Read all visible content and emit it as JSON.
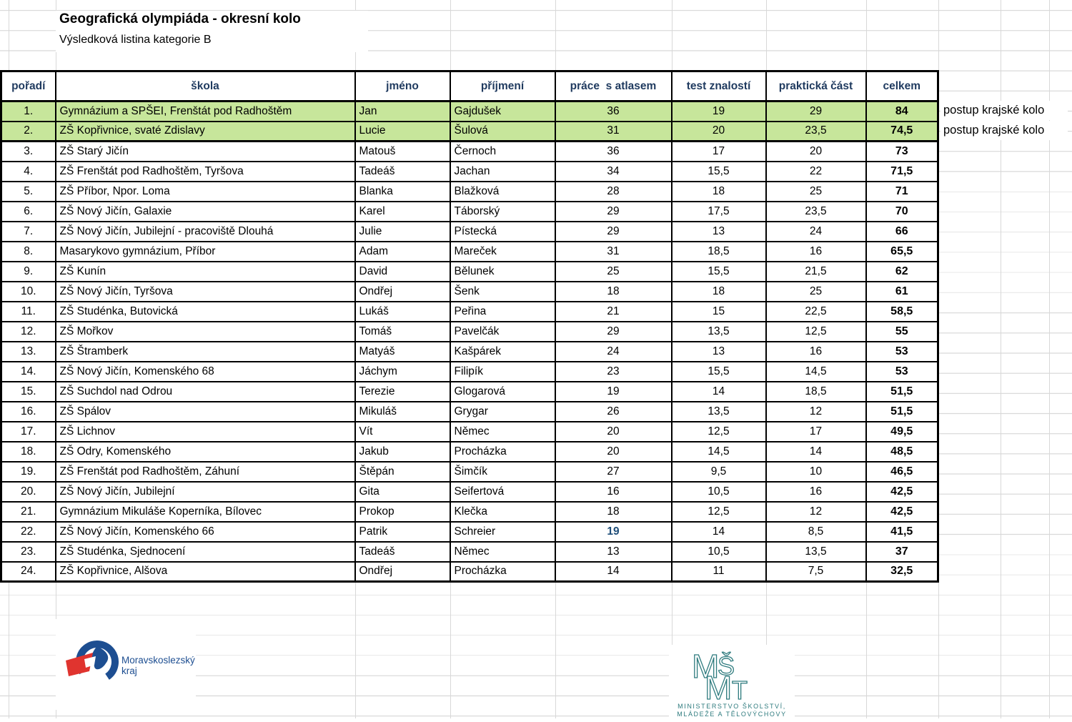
{
  "title": "Geografická olympiáda - okresní kolo",
  "subtitle": "Výsledková listina kategorie B",
  "table": {
    "columns": [
      {
        "key": "rank",
        "label": "pořadí"
      },
      {
        "key": "school",
        "label": "škola"
      },
      {
        "key": "first_name",
        "label": "jméno"
      },
      {
        "key": "last_name",
        "label": "příjmení"
      },
      {
        "key": "atlas",
        "label": "práce  s atlasem"
      },
      {
        "key": "test",
        "label": "test znalostí"
      },
      {
        "key": "practical",
        "label": "praktická část"
      },
      {
        "key": "total",
        "label": "celkem"
      }
    ],
    "rows": [
      {
        "rank": "1.",
        "school": "Gymnázium a SPŠEI, Frenštát pod Radhoštěm",
        "first_name": "Jan",
        "last_name": "Gajdušek",
        "atlas": "36",
        "test": "19",
        "practical": "29",
        "total": "84",
        "highlight": true,
        "note": "postup krajské kolo"
      },
      {
        "rank": "2.",
        "school": "ZŠ Kopřivnice, svaté Zdislavy",
        "first_name": "Lucie",
        "last_name": "Šulová",
        "atlas": "31",
        "test": "20",
        "practical": "23,5",
        "total": "74,5",
        "highlight": true,
        "note": "postup krajské kolo"
      },
      {
        "rank": "3.",
        "school": "ZŠ Starý Jičín",
        "first_name": "Matouš",
        "last_name": "Černoch",
        "atlas": "36",
        "test": "17",
        "practical": "20",
        "total": "73"
      },
      {
        "rank": "4.",
        "school": "ZŠ Frenštát pod Radhoštěm, Tyršova",
        "first_name": "Tadeáš",
        "last_name": "Jachan",
        "atlas": "34",
        "test": "15,5",
        "practical": "22",
        "total": "71,5"
      },
      {
        "rank": "5.",
        "school": "ZŠ Příbor, Npor. Loma",
        "first_name": "Blanka",
        "last_name": "Blažková",
        "atlas": "28",
        "test": "18",
        "practical": "25",
        "total": "71"
      },
      {
        "rank": "6.",
        "school": "ZŠ Nový Jičín, Galaxie",
        "first_name": "Karel",
        "last_name": "Táborský",
        "atlas": "29",
        "test": "17,5",
        "practical": "23,5",
        "total": "70"
      },
      {
        "rank": "7.",
        "school": "ZŠ Nový Jičín, Jubilejní - pracoviště Dlouhá",
        "first_name": "Julie",
        "last_name": "Pístecká",
        "atlas": "29",
        "test": "13",
        "practical": "24",
        "total": "66"
      },
      {
        "rank": "8.",
        "school": "Masarykovo gymnázium, Příbor",
        "first_name": "Adam",
        "last_name": "Mareček",
        "atlas": "31",
        "test": "18,5",
        "practical": "16",
        "total": "65,5"
      },
      {
        "rank": "9.",
        "school": "ZŠ Kunín",
        "first_name": "David",
        "last_name": "Bělunek",
        "atlas": "25",
        "test": "15,5",
        "practical": "21,5",
        "total": "62"
      },
      {
        "rank": "10.",
        "school": "ZŠ Nový Jičín, Tyršova",
        "first_name": "Ondřej",
        "last_name": "Šenk",
        "atlas": "18",
        "test": "18",
        "practical": "25",
        "total": "61"
      },
      {
        "rank": "11.",
        "school": "ZŠ Studénka, Butovická",
        "first_name": "Lukáš",
        "last_name": "Peřina",
        "atlas": "21",
        "test": "15",
        "practical": "22,5",
        "total": "58,5"
      },
      {
        "rank": "12.",
        "school": "ZŠ Mořkov",
        "first_name": "Tomáš",
        "last_name": "Pavelčák",
        "atlas": "29",
        "test": "13,5",
        "practical": "12,5",
        "total": "55"
      },
      {
        "rank": "13.",
        "school": "ZŠ Štramberk",
        "first_name": "Matyáš",
        "last_name": "Kašpárek",
        "atlas": "24",
        "test": "13",
        "practical": "16",
        "total": "53"
      },
      {
        "rank": "14.",
        "school": "ZŠ Nový Jičín, Komenského 68",
        "first_name": "Jáchym",
        "last_name": "Filipík",
        "atlas": "23",
        "test": "15,5",
        "practical": "14,5",
        "total": "53"
      },
      {
        "rank": "15.",
        "school": "ZŠ Suchdol nad Odrou",
        "first_name": "Terezie",
        "last_name": "Glogarová",
        "atlas": "19",
        "test": "14",
        "practical": "18,5",
        "total": "51,5"
      },
      {
        "rank": "16.",
        "school": "ZŠ Spálov",
        "first_name": "Mikuláš",
        "last_name": "Grygar",
        "atlas": "26",
        "test": "13,5",
        "practical": "12",
        "total": "51,5"
      },
      {
        "rank": "17.",
        "school": "ZŠ Lichnov",
        "first_name": "Vít",
        "last_name": "Němec",
        "atlas": "20",
        "test": "12,5",
        "practical": "17",
        "total": "49,5"
      },
      {
        "rank": "18.",
        "school": "ZŠ Odry, Komenského",
        "first_name": "Jakub",
        "last_name": "Procházka",
        "atlas": "20",
        "test": "14,5",
        "practical": "14",
        "total": "48,5"
      },
      {
        "rank": "19.",
        "school": "ZŠ Frenštát pod Radhoštěm, Záhuní",
        "first_name": "Štěpán",
        "last_name": "Šimčík",
        "atlas": "27",
        "test": "9,5",
        "practical": "10",
        "total": "46,5"
      },
      {
        "rank": "20.",
        "school": "ZŠ Nový Jičín, Jubilejní",
        "first_name": "Gita",
        "last_name": "Seifertová",
        "atlas": "16",
        "test": "10,5",
        "practical": "16",
        "total": "42,5"
      },
      {
        "rank": "21.",
        "school": "Gymnázium Mikuláše Koperníka, Bílovec",
        "first_name": "Prokop",
        "last_name": "Klečka",
        "atlas": "18",
        "test": "12,5",
        "practical": "12",
        "total": "42,5"
      },
      {
        "rank": "22.",
        "school": "ZŠ Nový Jičín, Komenského 66",
        "first_name": "Patrik",
        "last_name": "Schreier",
        "atlas": "19",
        "test": "14",
        "practical": "8,5",
        "total": "41,5",
        "atlas_emphasis": true
      },
      {
        "rank": "23.",
        "school": "ZŠ Studénka, Sjednocení",
        "first_name": "Tadeáš",
        "last_name": "Němec",
        "atlas": "13",
        "test": "10,5",
        "practical": "13,5",
        "total": "37"
      },
      {
        "rank": "24.",
        "school": "ZŠ Kopřivnice, Alšova",
        "first_name": "Ondřej",
        "last_name": "Procházka",
        "atlas": "14",
        "test": "11",
        "practical": "7,5",
        "total": "32,5"
      }
    ]
  },
  "footer": {
    "msk": {
      "name_line1": "Moravskoslezský",
      "name_line2": "kraj",
      "blue": "#1d4e91",
      "red": "#e0342f"
    },
    "msmt": {
      "letters": [
        "M",
        "Š",
        "M",
        "T"
      ],
      "caption_line1": "MINISTERSTVO ŠKOLSTVÍ,",
      "caption_line2": "MLÁDEŽE A TĚLOVÝCHOVY",
      "teal": "#2e7b7e"
    }
  },
  "colors": {
    "highlight_green": "#c7e69b",
    "header_navy": "#1f3a5f",
    "gridline": "#d8d8d8"
  }
}
